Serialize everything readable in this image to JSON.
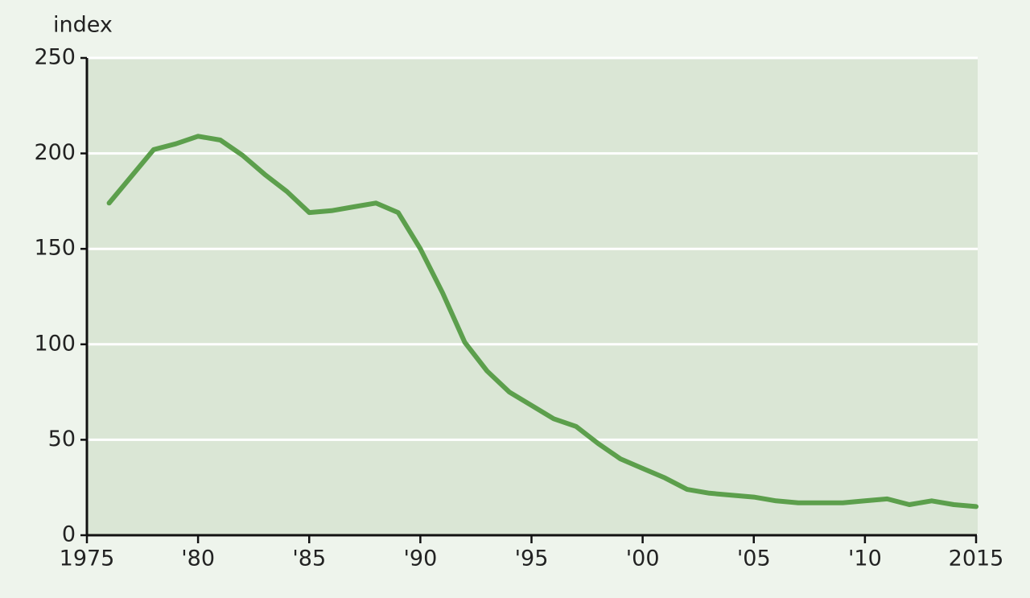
{
  "chart_data": {
    "type": "line",
    "y_label": "index",
    "x": [
      1976,
      1977,
      1978,
      1979,
      1980,
      1981,
      1982,
      1983,
      1984,
      1985,
      1986,
      1987,
      1988,
      1989,
      1990,
      1991,
      1992,
      1993,
      1994,
      1995,
      1996,
      1997,
      1998,
      1999,
      2000,
      2001,
      2002,
      2003,
      2004,
      2005,
      2006,
      2007,
      2008,
      2009,
      2010,
      2011,
      2012,
      2013,
      2014,
      2015
    ],
    "values": [
      174,
      188,
      202,
      205,
      209,
      207,
      199,
      189,
      180,
      169,
      170,
      172,
      174,
      169,
      150,
      127,
      101,
      86,
      75,
      68,
      61,
      57,
      48,
      40,
      35,
      30,
      24,
      22,
      21,
      20,
      18,
      17,
      17,
      17,
      18,
      19,
      16,
      18,
      16,
      15
    ],
    "color": "#5c9f4c",
    "xlim": [
      1975,
      2015
    ],
    "xticks": [
      1975,
      {
        "value": 1980,
        "label": "'80"
      },
      {
        "value": 1985,
        "label": "'85"
      },
      {
        "value": 1990,
        "label": "'90"
      },
      {
        "value": 1995,
        "label": "'95"
      },
      {
        "value": 2000,
        "label": "'00"
      },
      {
        "value": 2005,
        "label": "'05"
      },
      {
        "value": 2010,
        "label": "'10"
      },
      2015
    ],
    "ylim": [
      0,
      250
    ],
    "yticks": [
      0,
      50,
      100,
      150,
      200,
      250
    ],
    "grid": true
  }
}
